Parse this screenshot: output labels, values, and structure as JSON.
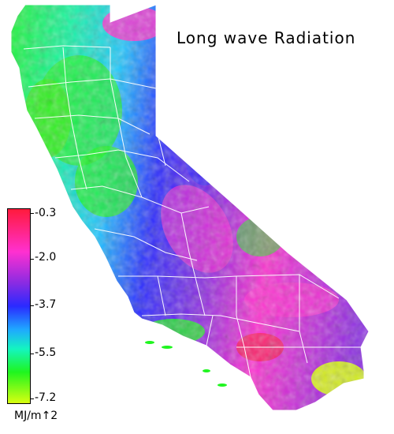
{
  "map": {
    "title": "Long wave Radiation",
    "region": "California",
    "units": "MJ/m↑2",
    "legend": {
      "ticks": [
        "-0.3",
        "-2.0",
        "-3.7",
        "-5.5",
        "-7.2"
      ],
      "colors": {
        "max": "#ff1a3c",
        "high": "#ff30d0",
        "mid_high": "#8a2be2",
        "mid": "#2a2aff",
        "mid_low": "#1fa8ff",
        "low": "#14f5c0",
        "lower": "#1ff51f",
        "min": "#d8ff10"
      }
    }
  }
}
